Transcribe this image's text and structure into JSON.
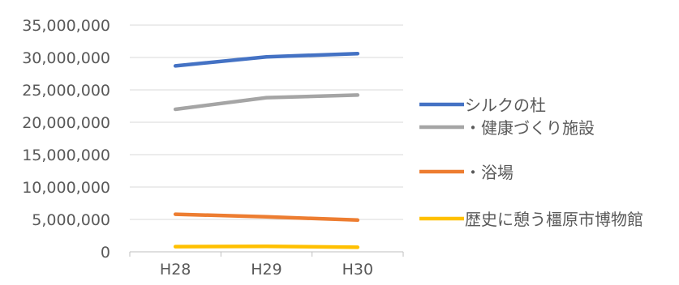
{
  "chart_data": {
    "type": "line",
    "categories": [
      "H28",
      "H29",
      "H30"
    ],
    "ylim": [
      0,
      35000000
    ],
    "y_ticks": [
      "0",
      "5,000,000",
      "10,000,000",
      "15,000,000",
      "20,000,000",
      "25,000,000",
      "30,000,000",
      "35,000,000"
    ],
    "grid": true,
    "legend_position": "right",
    "title": "",
    "xlabel": "",
    "ylabel": "",
    "series": [
      {
        "name": "シルクの杜",
        "values": [
          28700000,
          30100000,
          30600000
        ],
        "color": "#4472C4"
      },
      {
        "name": "・健康づくり施設",
        "values": [
          22000000,
          23800000,
          24200000
        ],
        "color": "#A5A5A5"
      },
      {
        "name": "・浴場",
        "values": [
          5800000,
          5400000,
          4900000
        ],
        "color": "#ED7D31"
      },
      {
        "name": "歴史に憩う橿原市博物館",
        "values": [
          800000,
          850000,
          700000
        ],
        "color": "#FFC000"
      }
    ]
  }
}
